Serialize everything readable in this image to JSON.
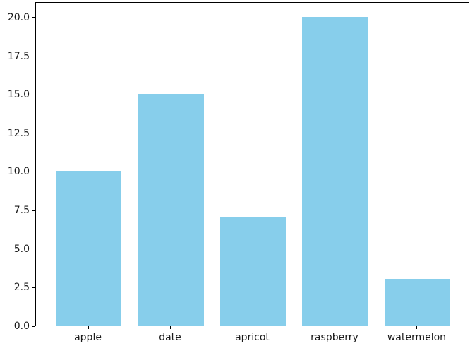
{
  "chart_data": {
    "type": "bar",
    "categories": [
      "apple",
      "date",
      "apricot",
      "raspberry",
      "watermelon"
    ],
    "values": [
      10,
      15,
      7,
      20,
      3
    ],
    "title": "",
    "xlabel": "",
    "ylabel": "",
    "ylim": [
      0,
      21
    ],
    "ytick_labels": [
      "0.0",
      "2.5",
      "5.0",
      "7.5",
      "10.0",
      "12.5",
      "15.0",
      "17.5",
      "20.0"
    ],
    "grid": false,
    "legend_visible": false,
    "colors": {
      "bar": "#87CEEB",
      "axis": "#000000",
      "tick_text": "#1a1a1a",
      "background": "#FFFFFF"
    }
  }
}
